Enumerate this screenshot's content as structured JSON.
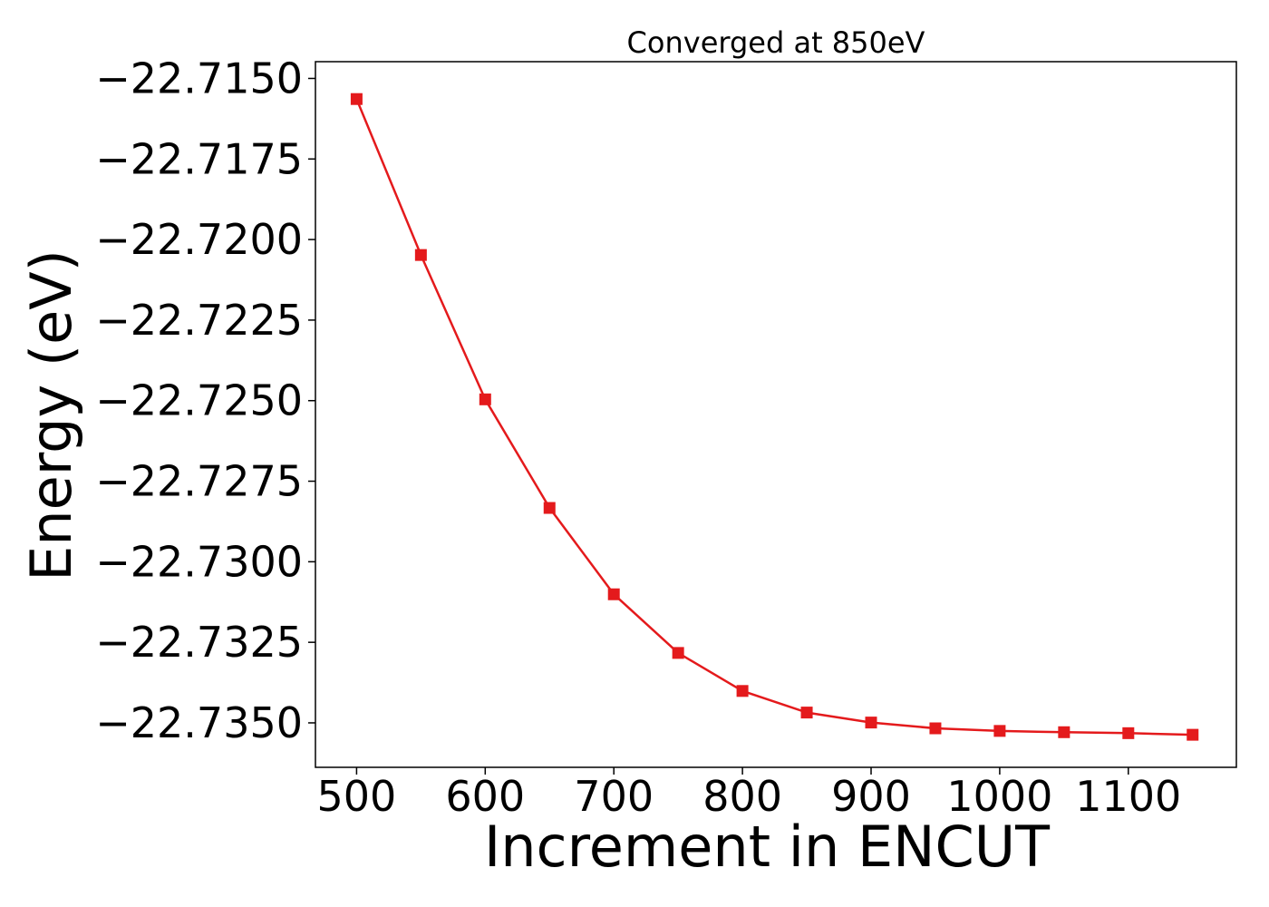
{
  "chart_data": {
    "type": "line",
    "title": "Converged at 850eV",
    "xlabel": "Increment in ENCUT",
    "ylabel": "Energy (eV)",
    "x": [
      500,
      550,
      600,
      650,
      700,
      750,
      800,
      850,
      900,
      950,
      1000,
      1050,
      1100,
      1150
    ],
    "series": [
      {
        "values": [
          -22.71564,
          -22.72048,
          -22.72496,
          -22.72833,
          -22.73101,
          -22.73283,
          -22.73401,
          -22.73468,
          -22.73499,
          -22.73517,
          -22.73525,
          -22.73529,
          -22.73532,
          -22.73537
        ],
        "color": "#e41a1c",
        "marker": "square"
      }
    ],
    "xlim": [
      468,
      1184
    ],
    "ylim": [
      -22.73638,
      -22.71448
    ],
    "xticks": [
      500,
      600,
      700,
      800,
      900,
      1000,
      1100
    ],
    "xtick_labels": [
      "500",
      "600",
      "700",
      "800",
      "900",
      "1000",
      "1100"
    ],
    "yticks": [
      -22.715,
      -22.7175,
      -22.72,
      -22.7225,
      -22.725,
      -22.7275,
      -22.73,
      -22.7325,
      -22.735
    ],
    "ytick_labels": [
      "−22.7150",
      "−22.7175",
      "−22.7200",
      "−22.7225",
      "−22.7250",
      "−22.7275",
      "−22.7300",
      "−22.7325",
      "−22.7350"
    ],
    "grid": false,
    "legend": false
  }
}
